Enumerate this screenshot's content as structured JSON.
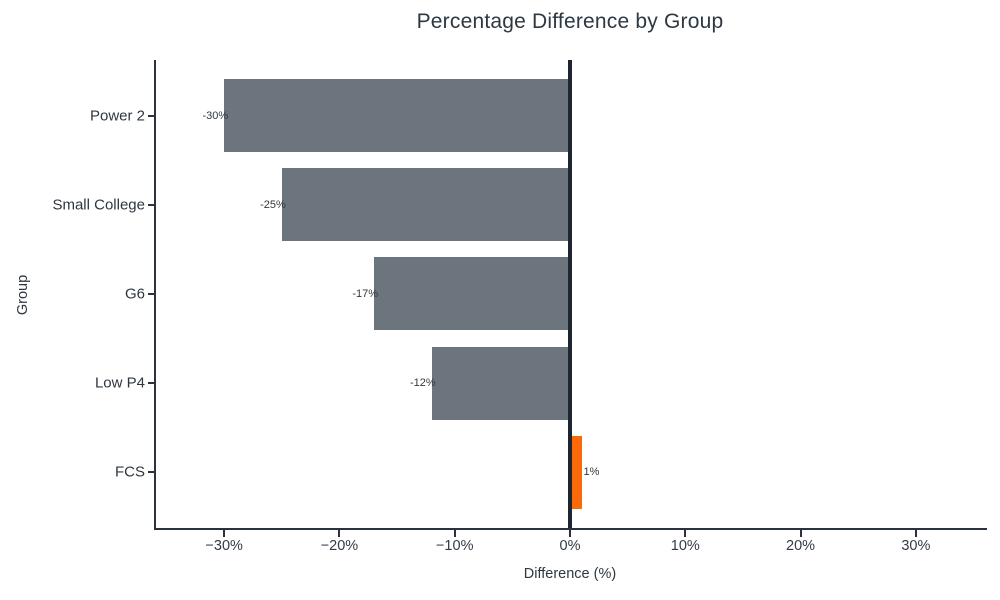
{
  "chart_data": {
    "type": "bar",
    "orientation": "horizontal",
    "title": "Percentage Difference by Group",
    "xlabel": "Difference (%)",
    "ylabel": "Group",
    "categories": [
      "Power 2",
      "Small College",
      "G6",
      "Low P4",
      "FCS"
    ],
    "values": [
      -30,
      -25,
      -17,
      -12,
      1
    ],
    "bar_labels": [
      "-30%",
      "-25%",
      "-17%",
      "-12%",
      "1%"
    ],
    "x_tick_values": [
      -30,
      -20,
      -10,
      0,
      10,
      20,
      30
    ],
    "x_tick_labels": [
      "−30%",
      "−20%",
      "−10%",
      "0%",
      "10%",
      "20%",
      "30%"
    ],
    "xlim": [
      -36,
      36
    ],
    "grid": false,
    "legend": null,
    "zero_reference_line": true,
    "highlight_index": 4,
    "colors": {
      "bar_default": "#6c757d",
      "bar_highlight": "#fb6a09",
      "zero_line": "#1d2531",
      "axis": "#2a323d",
      "text": "#2e3740"
    }
  }
}
